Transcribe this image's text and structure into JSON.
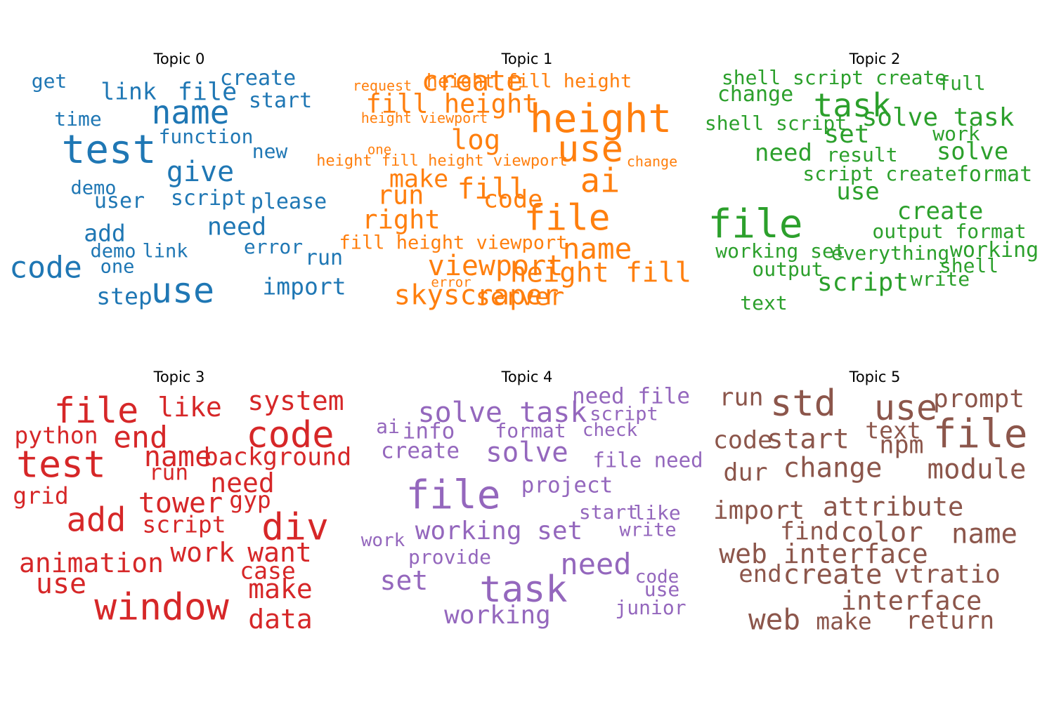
{
  "chart_data": [
    {
      "type": "wordcloud",
      "title": "Topic 0",
      "color": "#1f77b4",
      "words": [
        {
          "text": "test",
          "weight": 1.0
        },
        {
          "text": "use",
          "weight": 0.88
        },
        {
          "text": "name",
          "weight": 0.8
        },
        {
          "text": "code",
          "weight": 0.76
        },
        {
          "text": "give",
          "weight": 0.7
        },
        {
          "text": "need",
          "weight": 0.6
        },
        {
          "text": "file",
          "weight": 0.6
        },
        {
          "text": "link",
          "weight": 0.55
        },
        {
          "text": "add",
          "weight": 0.55
        },
        {
          "text": "import",
          "weight": 0.55
        },
        {
          "text": "step",
          "weight": 0.55
        },
        {
          "text": "please",
          "weight": 0.5
        },
        {
          "text": "user",
          "weight": 0.5
        },
        {
          "text": "script",
          "weight": 0.5
        },
        {
          "text": "create",
          "weight": 0.5
        },
        {
          "text": "start",
          "weight": 0.5
        },
        {
          "text": "error",
          "weight": 0.46
        },
        {
          "text": "run",
          "weight": 0.5
        },
        {
          "text": "function",
          "weight": 0.46
        },
        {
          "text": "time",
          "weight": 0.46
        },
        {
          "text": "get",
          "weight": 0.46
        },
        {
          "text": "new",
          "weight": 0.46
        },
        {
          "text": "demo",
          "weight": 0.43
        },
        {
          "text": "demo",
          "weight": 0.43
        },
        {
          "text": "link",
          "weight": 0.43
        },
        {
          "text": "one",
          "weight": 0.43
        }
      ]
    },
    {
      "type": "wordcloud",
      "title": "Topic 1",
      "color": "#ff7f0e",
      "words": [
        {
          "text": "height",
          "weight": 1.0
        },
        {
          "text": "use",
          "weight": 0.92
        },
        {
          "text": "file",
          "weight": 0.9
        },
        {
          "text": "ai",
          "weight": 0.82
        },
        {
          "text": "fill",
          "weight": 0.72
        },
        {
          "text": "name",
          "weight": 0.72
        },
        {
          "text": "viewport",
          "weight": 0.7
        },
        {
          "text": "create",
          "weight": 0.7
        },
        {
          "text": "height fill",
          "weight": 0.68
        },
        {
          "text": "fill height",
          "weight": 0.64
        },
        {
          "text": "log",
          "weight": 0.68
        },
        {
          "text": "skyscraper",
          "weight": 0.68
        },
        {
          "text": "right",
          "weight": 0.64
        },
        {
          "text": "run",
          "weight": 0.64
        },
        {
          "text": "make",
          "weight": 0.6
        },
        {
          "text": "code",
          "weight": 0.6
        },
        {
          "text": "server",
          "weight": 0.6
        },
        {
          "text": "height fill height",
          "weight": 0.44
        },
        {
          "text": "fill height viewport",
          "weight": 0.44
        },
        {
          "text": "height fill height viewport",
          "weight": 0.32
        },
        {
          "text": "height viewport",
          "weight": 0.28
        },
        {
          "text": "request",
          "weight": 0.28
        },
        {
          "text": "change",
          "weight": 0.28
        },
        {
          "text": "one",
          "weight": 0.26
        },
        {
          "text": "error",
          "weight": 0.26
        }
      ]
    },
    {
      "type": "wordcloud",
      "title": "Topic 2",
      "color": "#2ca02c",
      "words": [
        {
          "text": "file",
          "weight": 1.0
        },
        {
          "text": "task",
          "weight": 0.8
        },
        {
          "text": "solve task",
          "weight": 0.62
        },
        {
          "text": "set",
          "weight": 0.62
        },
        {
          "text": "script",
          "weight": 0.62
        },
        {
          "text": "create",
          "weight": 0.58
        },
        {
          "text": "need",
          "weight": 0.58
        },
        {
          "text": "solve",
          "weight": 0.58
        },
        {
          "text": "use",
          "weight": 0.58
        },
        {
          "text": "change",
          "weight": 0.5
        },
        {
          "text": "format",
          "weight": 0.5
        },
        {
          "text": "working",
          "weight": 0.5
        },
        {
          "text": "shell script create",
          "weight": 0.46
        },
        {
          "text": "shell script",
          "weight": 0.46
        },
        {
          "text": "script create",
          "weight": 0.46
        },
        {
          "text": "output format",
          "weight": 0.46
        },
        {
          "text": "working set",
          "weight": 0.46
        },
        {
          "text": "everything",
          "weight": 0.46
        },
        {
          "text": "output",
          "weight": 0.46
        },
        {
          "text": "result",
          "weight": 0.46
        },
        {
          "text": "full",
          "weight": 0.46
        },
        {
          "text": "work",
          "weight": 0.46
        },
        {
          "text": "shell",
          "weight": 0.46
        },
        {
          "text": "write",
          "weight": 0.46
        },
        {
          "text": "text",
          "weight": 0.46
        }
      ]
    },
    {
      "type": "wordcloud",
      "title": "Topic 3",
      "color": "#d62728",
      "words": [
        {
          "text": "window",
          "weight": 0.95
        },
        {
          "text": "test",
          "weight": 0.95
        },
        {
          "text": "div",
          "weight": 0.95
        },
        {
          "text": "code",
          "weight": 0.92
        },
        {
          "text": "file",
          "weight": 0.88
        },
        {
          "text": "add",
          "weight": 0.82
        },
        {
          "text": "end",
          "weight": 0.76
        },
        {
          "text": "tower",
          "weight": 0.7
        },
        {
          "text": "name",
          "weight": 0.7
        },
        {
          "text": "use",
          "weight": 0.7
        },
        {
          "text": "system",
          "weight": 0.66
        },
        {
          "text": "like",
          "weight": 0.66
        },
        {
          "text": "need",
          "weight": 0.66
        },
        {
          "text": "work",
          "weight": 0.66
        },
        {
          "text": "want",
          "weight": 0.66
        },
        {
          "text": "make",
          "weight": 0.66
        },
        {
          "text": "data",
          "weight": 0.66
        },
        {
          "text": "animation",
          "weight": 0.66
        },
        {
          "text": "background",
          "weight": 0.6
        },
        {
          "text": "python",
          "weight": 0.55
        },
        {
          "text": "script",
          "weight": 0.55
        },
        {
          "text": "case",
          "weight": 0.55
        },
        {
          "text": "grid",
          "weight": 0.55
        },
        {
          "text": "gyp",
          "weight": 0.55
        },
        {
          "text": "run",
          "weight": 0.52
        }
      ]
    },
    {
      "type": "wordcloud",
      "title": "Topic 4",
      "color": "#9467bd",
      "words": [
        {
          "text": "file",
          "weight": 1.0
        },
        {
          "text": "task",
          "weight": 0.92
        },
        {
          "text": "need",
          "weight": 0.74
        },
        {
          "text": "solve task",
          "weight": 0.7
        },
        {
          "text": "working set",
          "weight": 0.62
        },
        {
          "text": "solve",
          "weight": 0.68
        },
        {
          "text": "set",
          "weight": 0.66
        },
        {
          "text": "working",
          "weight": 0.62
        },
        {
          "text": "create",
          "weight": 0.52
        },
        {
          "text": "project",
          "weight": 0.52
        },
        {
          "text": "need file",
          "weight": 0.52
        },
        {
          "text": "file need",
          "weight": 0.48
        },
        {
          "text": "info",
          "weight": 0.52
        },
        {
          "text": "format",
          "weight": 0.46
        },
        {
          "text": "script",
          "weight": 0.44
        },
        {
          "text": "check",
          "weight": 0.42
        },
        {
          "text": "start",
          "weight": 0.46
        },
        {
          "text": "like",
          "weight": 0.46
        },
        {
          "text": "write",
          "weight": 0.44
        },
        {
          "text": "ai",
          "weight": 0.46
        },
        {
          "text": "provide",
          "weight": 0.46
        },
        {
          "text": "work",
          "weight": 0.42
        },
        {
          "text": "code",
          "weight": 0.42
        },
        {
          "text": "use",
          "weight": 0.46
        },
        {
          "text": "junior",
          "weight": 0.46
        }
      ]
    },
    {
      "type": "wordcloud",
      "title": "Topic 5",
      "color": "#8c564b",
      "words": [
        {
          "text": "file",
          "weight": 1.0
        },
        {
          "text": "std",
          "weight": 0.92
        },
        {
          "text": "use",
          "weight": 0.88
        },
        {
          "text": "web",
          "weight": 0.72
        },
        {
          "text": "create",
          "weight": 0.68
        },
        {
          "text": "start",
          "weight": 0.68
        },
        {
          "text": "change",
          "weight": 0.68
        },
        {
          "text": "module",
          "weight": 0.68
        },
        {
          "text": "name",
          "weight": 0.68
        },
        {
          "text": "color",
          "weight": 0.68
        },
        {
          "text": "web interface",
          "weight": 0.66
        },
        {
          "text": "attribute",
          "weight": 0.64
        },
        {
          "text": "interface",
          "weight": 0.64
        },
        {
          "text": "vtratio",
          "weight": 0.62
        },
        {
          "text": "prompt",
          "weight": 0.62
        },
        {
          "text": "import",
          "weight": 0.62
        },
        {
          "text": "run",
          "weight": 0.6
        },
        {
          "text": "code",
          "weight": 0.6
        },
        {
          "text": "npm",
          "weight": 0.6
        },
        {
          "text": "dur",
          "weight": 0.6
        },
        {
          "text": "find",
          "weight": 0.6
        },
        {
          "text": "return",
          "weight": 0.6
        },
        {
          "text": "end",
          "weight": 0.58
        },
        {
          "text": "text",
          "weight": 0.56
        },
        {
          "text": "make",
          "weight": 0.56
        }
      ]
    }
  ]
}
